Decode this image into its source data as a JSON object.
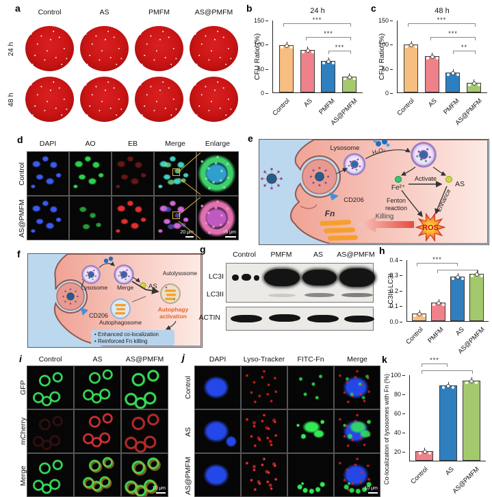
{
  "panels": {
    "a": {
      "letter": "a",
      "col_headers": [
        "Control",
        "AS",
        "PMFM",
        "AS@PMFM"
      ],
      "row_headers": [
        "24 h",
        "48 h"
      ]
    },
    "b": {
      "letter": "b"
    },
    "c": {
      "letter": "c"
    },
    "d": {
      "letter": "d",
      "col_headers": [
        "DAPI",
        "AO",
        "EB",
        "Merge",
        "Enlarge"
      ],
      "row_headers": [
        "Control",
        "AS@PMFM"
      ],
      "scale_bar_merge": "20 μm",
      "scale_bar_enlarge": "5 μm"
    },
    "e": {
      "letter": "e",
      "labels": {
        "lysosome": "Lysosome",
        "h2o2": "H₂O₂",
        "fe": "Fe²⁺",
        "activate": "Activate",
        "as": "AS",
        "fenton1": "Fenton",
        "fenton2": "reaction",
        "enhance": "Enhance",
        "ros": "ROS",
        "killing": "Killing",
        "fn": "Fn",
        "cd206": "CD206"
      }
    },
    "f": {
      "letter": "f",
      "labels": {
        "lysosome": "Lysosome",
        "merge": "Merge",
        "as": "AS",
        "autolysosome": "Autolysosome",
        "cd206": "CD206",
        "autophagosome": "Autophagosome",
        "activation1": "Autophagy",
        "activation2": "activation",
        "bullet1": "• Enhanced co-localization",
        "bullet2": "• Reinforced Fn killing"
      }
    },
    "g": {
      "letter": "g",
      "lanes": [
        "Control",
        "PMFM",
        "AS",
        "AS@PMFM"
      ],
      "rows": [
        "LC3I",
        "LC3II",
        "ACTIN"
      ]
    },
    "h": {
      "letter": "h"
    },
    "i": {
      "letter": "i",
      "col_headers": [
        "Control",
        "AS",
        "AS@PMFM"
      ],
      "row_headers": [
        "GFP",
        "mCherry",
        "Merge"
      ],
      "scale_bar": "10 μm"
    },
    "j": {
      "letter": "j",
      "col_headers": [
        "DAPI",
        "Lyso-Tracker",
        "FITC-Fn",
        "Merge"
      ],
      "row_headers": [
        "Control",
        "AS",
        "AS@PMFM"
      ],
      "scale_bar": "10 μm"
    },
    "k": {
      "letter": "k"
    }
  },
  "colors": {
    "bar_orange": "#f6be81",
    "bar_pink": "#ee8189",
    "bar_blue": "#2f7fbe",
    "bar_green": "#a3c86d",
    "plate_red": "#c41414",
    "diagram_bg": "#bcd8ee",
    "cell_pink": "#f5b8ad",
    "ros_text": "#c40f0f",
    "activation_orange": "#e8622d",
    "fn_orange": "#f5a02c"
  },
  "chart_data": [
    {
      "id": "b",
      "type": "bar",
      "title": "24 h",
      "ylabel": "CFU Ratio (%)",
      "categories": [
        "Control",
        "AS",
        "PMFM",
        "AS@PMFM"
      ],
      "values": [
        98,
        89,
        66,
        33
      ],
      "bar_colors": [
        "#f6be81",
        "#ee8189",
        "#2f7fbe",
        "#a3c86d"
      ],
      "yticks": [
        0,
        50,
        100,
        150
      ],
      "ytick_labels": [
        "0",
        "50",
        "100",
        "150"
      ],
      "ylim": [
        0,
        150
      ],
      "legend": "none",
      "grid": false,
      "significance": [
        {
          "groups": [
            "Control",
            "AS@PMFM"
          ],
          "label": "***"
        },
        {
          "groups": [
            "AS",
            "AS@PMFM"
          ],
          "label": "***"
        },
        {
          "groups": [
            "PMFM",
            "AS@PMFM"
          ],
          "label": "***"
        }
      ]
    },
    {
      "id": "c",
      "type": "bar",
      "title": "48 h",
      "ylabel": "CFU Ratio (%)",
      "categories": [
        "Control",
        "AS",
        "PMFM",
        "AS@PMFM"
      ],
      "values": [
        100,
        76,
        42,
        20
      ],
      "bar_colors": [
        "#f6be81",
        "#ee8189",
        "#2f7fbe",
        "#a3c86d"
      ],
      "yticks": [
        0,
        50,
        100,
        150
      ],
      "ytick_labels": [
        "0",
        "50",
        "100",
        "150"
      ],
      "ylim": [
        0,
        150
      ],
      "legend": "none",
      "grid": false,
      "significance": [
        {
          "groups": [
            "Control",
            "AS@PMFM"
          ],
          "label": "***"
        },
        {
          "groups": [
            "AS",
            "AS@PMFM"
          ],
          "label": "***"
        },
        {
          "groups": [
            "PMFM",
            "AS@PMFM"
          ],
          "label": "**"
        }
      ]
    },
    {
      "id": "h",
      "type": "bar",
      "title": "",
      "ylabel": "LC3II/ LC3I",
      "categories": [
        "Control",
        "PMFM",
        "AS",
        "AS@PMFM"
      ],
      "values": [
        0.05,
        0.12,
        0.29,
        0.31
      ],
      "bar_colors": [
        "#f6be81",
        "#ee8189",
        "#2f7fbe",
        "#a3c86d"
      ],
      "yticks": [
        0.0,
        0.1,
        0.2,
        0.3,
        0.4
      ],
      "ytick_labels": [
        "0.0",
        "0.1",
        "0.2",
        "0.3",
        "0.4"
      ],
      "ylim": [
        0,
        0.4
      ],
      "legend": "none",
      "grid": false,
      "significance": [
        {
          "groups": [
            "Control",
            "AS"
          ],
          "label": "***"
        },
        {
          "groups": [
            "PMFM",
            "AS@PMFM"
          ],
          "label": ""
        }
      ]
    },
    {
      "id": "k",
      "type": "bar",
      "title": "",
      "ylabel": "Co-localization of lysosomes with Fn (%)",
      "categories": [
        "Control",
        "AS",
        "AS@PMFM"
      ],
      "values": [
        20,
        89,
        94
      ],
      "bar_colors": [
        "#ee8189",
        "#2f7fbe",
        "#a3c86d"
      ],
      "yticks": [
        20,
        40,
        60,
        80,
        100
      ],
      "ytick_labels": [
        "20",
        "40",
        "60",
        "80",
        "100"
      ],
      "ylim": [
        10,
        100
      ],
      "legend": "none",
      "grid": false,
      "significance": [
        {
          "groups": [
            "Control",
            "AS"
          ],
          "label": "***"
        },
        {
          "groups": [
            "Control",
            "AS@PMFM"
          ],
          "label": ""
        }
      ]
    }
  ]
}
